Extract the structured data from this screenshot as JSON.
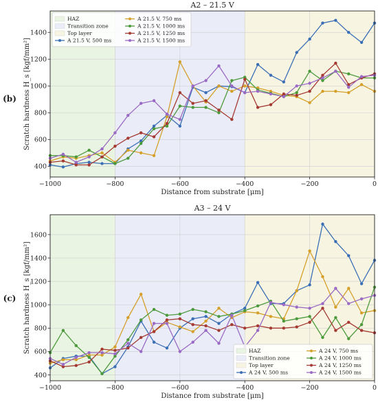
{
  "chart_data": [
    {
      "type": "line",
      "panel_label": "(b)",
      "title": "A2 – 21.5 V",
      "xlabel": "Distance from substrate [μm]",
      "ylabel": "Scratch hardness H_s [kgf/mm²]",
      "xlim": [
        -1000,
        0
      ],
      "ylim": [
        320,
        1560
      ],
      "xticks": [
        -1000,
        -800,
        -600,
        -400,
        -200,
        0
      ],
      "yticks": [
        400,
        600,
        800,
        1000,
        1200,
        1400
      ],
      "grid": true,
      "legend_position": "top-left",
      "zones": [
        {
          "name": "HAZ",
          "from": -1000,
          "to": -800,
          "color": "#eaf4e2"
        },
        {
          "name": "Transition zone",
          "from": -800,
          "to": -400,
          "color": "#eaecf8"
        },
        {
          "name": "Top layer",
          "from": -400,
          "to": 0,
          "color": "#f8f4e2"
        }
      ],
      "x": [
        -1000,
        -960,
        -920,
        -880,
        -840,
        -800,
        -760,
        -720,
        -680,
        -640,
        -600,
        -560,
        -520,
        -480,
        -440,
        -400,
        -360,
        -320,
        -280,
        -240,
        -200,
        -160,
        -120,
        -80,
        -40,
        0
      ],
      "series": [
        {
          "name": "A 21.5 V, 500 ms",
          "color": "#3a6fb5",
          "values": [
            410,
            395,
            420,
            430,
            420,
            420,
            530,
            590,
            700,
            780,
            700,
            990,
            950,
            1000,
            995,
            950,
            1160,
            1080,
            1030,
            1250,
            1350,
            1470,
            1490,
            1400,
            1325,
            1470
          ]
        },
        {
          "name": "A 21.5 V, 750 ms",
          "color": "#d4a02a",
          "values": [
            440,
            470,
            460,
            480,
            500,
            430,
            520,
            500,
            480,
            770,
            1180,
            1000,
            880,
            1000,
            960,
            1000,
            985,
            960,
            930,
            920,
            875,
            960,
            960,
            950,
            1010,
            960
          ]
        },
        {
          "name": "A 21.5 V, 1000 ms",
          "color": "#4c9a3c",
          "values": [
            480,
            480,
            470,
            520,
            470,
            420,
            460,
            570,
            680,
            700,
            850,
            840,
            840,
            800,
            1040,
            1065,
            970,
            945,
            920,
            950,
            1110,
            1040,
            1110,
            1090,
            1060,
            1060
          ]
        },
        {
          "name": "A 21.5 V, 1250 ms",
          "color": "#a53a32",
          "values": [
            430,
            440,
            410,
            410,
            470,
            550,
            610,
            650,
            620,
            720,
            950,
            870,
            890,
            820,
            750,
            1050,
            840,
            860,
            940,
            930,
            960,
            1080,
            1170,
            1010,
            1060,
            1090
          ]
        },
        {
          "name": "A 21.5 V, 1500 ms",
          "color": "#9a6ac4",
          "values": [
            460,
            490,
            430,
            470,
            530,
            650,
            780,
            870,
            890,
            790,
            750,
            1000,
            1040,
            1150,
            1000,
            950,
            960,
            940,
            920,
            1000,
            1020,
            1060,
            1110,
            990,
            1070,
            1080
          ]
        }
      ]
    },
    {
      "type": "line",
      "panel_label": "(c)",
      "title": "A3 – 24 V",
      "xlabel": "Distance from substrate [μm]",
      "ylabel": "Scratch hardness H_s [kgf/mm²]",
      "xlim": [
        -1000,
        0
      ],
      "ylim": [
        350,
        1770
      ],
      "xticks": [
        -1000,
        -800,
        -600,
        -400,
        -200,
        0
      ],
      "yticks": [
        400,
        600,
        800,
        1000,
        1200,
        1400,
        1600
      ],
      "grid": true,
      "legend_position": "bottom-right",
      "zones": [
        {
          "name": "HAZ",
          "from": -1000,
          "to": -800,
          "color": "#eaf4e2"
        },
        {
          "name": "Transition zone",
          "from": -800,
          "to": -400,
          "color": "#eaecf8"
        },
        {
          "name": "Top layer",
          "from": -400,
          "to": 0,
          "color": "#f8f4e2"
        }
      ],
      "x": [
        -1000,
        -960,
        -920,
        -880,
        -840,
        -800,
        -760,
        -720,
        -680,
        -640,
        -600,
        -560,
        -520,
        -480,
        -440,
        -400,
        -360,
        -320,
        -280,
        -240,
        -200,
        -160,
        -120,
        -80,
        -40,
        0
      ],
      "series": [
        {
          "name": "A 24 V, 500 ms",
          "color": "#3a6fb5",
          "values": [
            460,
            540,
            560,
            560,
            410,
            470,
            640,
            860,
            680,
            630,
            800,
            880,
            900,
            840,
            920,
            970,
            1190,
            1010,
            1010,
            1120,
            1170,
            1690,
            1540,
            1420,
            1180,
            1380
          ]
        },
        {
          "name": "A 24 V, 750 ms",
          "color": "#d4a02a",
          "values": [
            500,
            530,
            530,
            570,
            570,
            640,
            890,
            1090,
            770,
            850,
            810,
            770,
            860,
            970,
            890,
            940,
            930,
            900,
            880,
            1120,
            1460,
            1240,
            980,
            1140,
            930,
            950
          ]
        },
        {
          "name": "A 24 V, 1000 ms",
          "color": "#4c9a3c",
          "values": [
            590,
            780,
            650,
            550,
            410,
            560,
            700,
            870,
            960,
            910,
            920,
            960,
            940,
            900,
            920,
            950,
            990,
            1030,
            860,
            880,
            900,
            720,
            890,
            710,
            830,
            1150
          ]
        },
        {
          "name": "A 24 V, 1250 ms",
          "color": "#a53a32",
          "values": [
            520,
            470,
            480,
            510,
            620,
            610,
            630,
            720,
            770,
            870,
            880,
            830,
            820,
            780,
            830,
            800,
            820,
            800,
            800,
            810,
            850,
            970,
            780,
            850,
            780,
            760
          ]
        },
        {
          "name": "A 24 V, 1500 ms",
          "color": "#9a6ac4",
          "values": [
            540,
            490,
            550,
            590,
            590,
            580,
            670,
            600,
            840,
            840,
            600,
            680,
            780,
            670,
            910,
            640,
            780,
            1020,
            1000,
            980,
            970,
            1010,
            1140,
            1010,
            1050,
            1080
          ]
        }
      ]
    }
  ]
}
